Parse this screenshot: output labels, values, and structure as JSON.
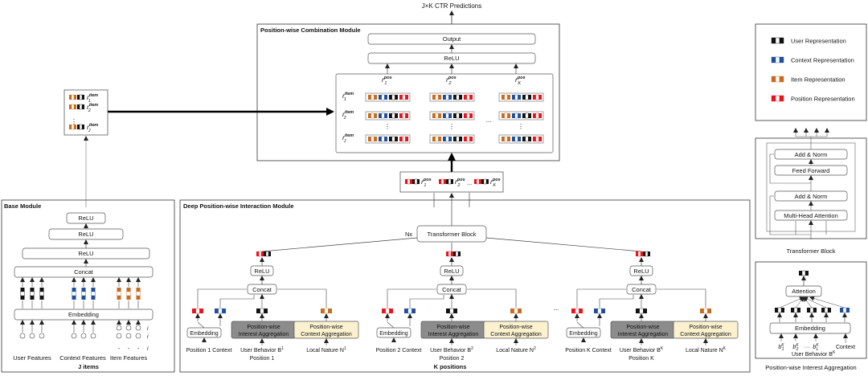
{
  "top": {
    "predictions": "J×K CTR Predictions"
  },
  "pcm": {
    "title": "Position-wise Combination Module",
    "output": "Output",
    "relu": "ReLU",
    "ellipsis": "...",
    "vdots": "⋮"
  },
  "base": {
    "title": "Base Module",
    "relu": "ReLU",
    "concat": "Concat",
    "embedding": "Embedding",
    "user_features": "User Features",
    "context_features": "Context Features",
    "item_features": "Item Features",
    "j_items": "J items",
    "vdots": "⋮"
  },
  "dpim": {
    "title": "Deep Position-wise Interaction Module",
    "nx": "Nx",
    "transformer_block": "Transformer Block",
    "relu": "ReLU",
    "concat": "Concat",
    "embedding": "Embedding",
    "interest_agg": [
      "Position-wise",
      "Interest Aggregation"
    ],
    "context_agg": [
      "Position-wise",
      "Context Aggregation"
    ],
    "ellipsis": "...",
    "k_positions": "K positions",
    "groups": [
      {
        "context": "Position 1 Context",
        "behavior": "User Behavior B",
        "sup": "1",
        "position": "Position 1",
        "nature": "Local Nature N"
      },
      {
        "context": "Position 2 Context",
        "behavior": "User Behavior B",
        "sup": "2",
        "position": "Position 2",
        "nature": "Local Nature N"
      },
      {
        "context": "Position K Context",
        "behavior": "User Behavior B",
        "sup": "K",
        "position": "Position K",
        "nature": "Local Nature N"
      }
    ]
  },
  "legend": {
    "items": [
      {
        "label": "User Representation",
        "colors": [
          "#111111",
          "#ffffff",
          "#111111"
        ]
      },
      {
        "label": "Context Representation",
        "colors": [
          "#1f4e9c",
          "#ffffff",
          "#1f4e9c"
        ]
      },
      {
        "label": "Item Representation",
        "colors": [
          "#c96a1c",
          "#ffffff",
          "#c96a1c"
        ]
      },
      {
        "label": "Position Representation",
        "colors": [
          "#e8141c",
          "#ffffff",
          "#e8141c"
        ]
      }
    ]
  },
  "transformer": {
    "add_norm": "Add & Norm",
    "feed_forward": "Feed Forward",
    "mha": "Multi-Head Attention",
    "caption": "Transformer Block"
  },
  "pia": {
    "attention": "Attention",
    "embedding": "Embedding",
    "user_behavior": "User Behavior B",
    "context": "Context",
    "dots": "···",
    "caption": "Position-wise Interest Aggregation"
  },
  "colors": {
    "user": "#111111",
    "context": "#1f4e9c",
    "item": "#c96a1c",
    "position": "#e8141c",
    "agg_gray": "#8c8c8c",
    "agg_yellow": "#fbf1cf"
  }
}
